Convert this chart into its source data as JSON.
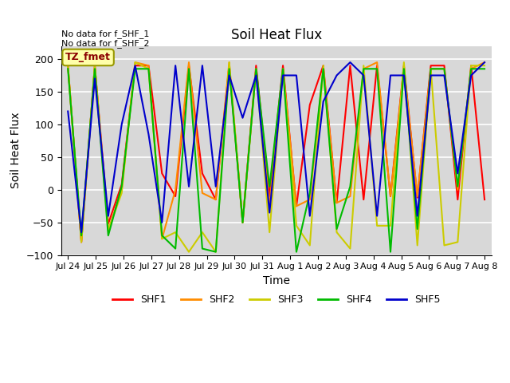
{
  "title": "Soil Heat Flux",
  "xlabel": "Time",
  "ylabel": "Soil Heat Flux",
  "ylim": [
    -100,
    220
  ],
  "yticks": [
    -100,
    -50,
    0,
    50,
    100,
    150,
    200
  ],
  "annotation_text": "No data for f_SHF_1\nNo data for f_SHF_2",
  "legend_label": "TZ_fmet",
  "background_color": "#d8d8d8",
  "plot_bg_color": "#d8d8d8",
  "series_colors": {
    "SHF1": "#ff0000",
    "SHF2": "#ff8c00",
    "SHF3": "#cccc00",
    "SHF4": "#00bb00",
    "SHF5": "#0000cc"
  },
  "x_tick_labels": [
    "Jul 24",
    "Jul 25",
    "Jul 26",
    "Jul 27",
    "Jul 28",
    "Jul 29",
    "Jul 30",
    "Jul 31",
    "Aug 1",
    "Aug 2",
    "Aug 3",
    "Aug 4",
    "Aug 5",
    "Aug 6",
    "Aug 7",
    "Aug 8"
  ],
  "SHF1": [
    190,
    -80,
    190,
    -52,
    8,
    190,
    190,
    25,
    -10,
    190,
    25,
    -15,
    190,
    -50,
    190,
    -10,
    190,
    -25,
    130,
    190,
    -20,
    190,
    -15,
    190,
    -10,
    190,
    -12,
    190,
    190,
    -15,
    190,
    -15
  ],
  "SHF2": [
    190,
    -80,
    190,
    -62,
    0,
    195,
    190,
    -75,
    0,
    195,
    -5,
    -15,
    195,
    -50,
    185,
    -25,
    185,
    -25,
    -15,
    185,
    -20,
    -10,
    185,
    195,
    -10,
    185,
    -10,
    185,
    185,
    0,
    185,
    195
  ],
  "SHF3": [
    190,
    -80,
    190,
    -62,
    -5,
    195,
    185,
    -75,
    -65,
    -95,
    -65,
    -95,
    195,
    -50,
    185,
    -65,
    185,
    -55,
    -85,
    190,
    -65,
    -90,
    190,
    -55,
    -55,
    195,
    -85,
    185,
    -85,
    -80,
    190,
    190
  ],
  "SHF4": [
    185,
    -70,
    185,
    -70,
    5,
    185,
    185,
    -70,
    -90,
    185,
    -90,
    -95,
    185,
    -50,
    185,
    5,
    185,
    -95,
    -5,
    185,
    -60,
    5,
    185,
    185,
    -95,
    185,
    -60,
    185,
    185,
    5,
    185,
    185
  ],
  "SHF5": [
    120,
    -65,
    170,
    -40,
    100,
    190,
    85,
    -50,
    190,
    5,
    190,
    5,
    175,
    110,
    175,
    -35,
    175,
    175,
    -40,
    135,
    175,
    195,
    175,
    -40,
    175,
    175,
    -40,
    175,
    175,
    25,
    175,
    195
  ],
  "n_ticks": 16,
  "n_points": 32
}
